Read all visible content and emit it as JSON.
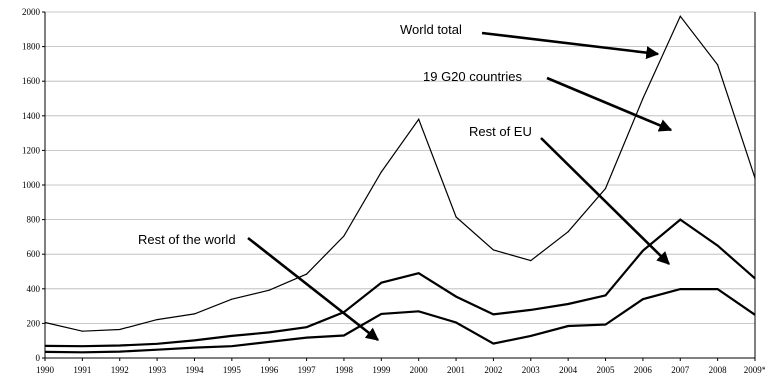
{
  "chart_data": {
    "type": "line",
    "x": [
      1990,
      1991,
      1992,
      1993,
      1994,
      1995,
      1996,
      1997,
      1998,
      1999,
      2000,
      2001,
      2002,
      2003,
      2004,
      2005,
      2006,
      2007,
      2008,
      2009
    ],
    "x_tick_labels": [
      "1990",
      "1991",
      "1992",
      "1993",
      "1994",
      "1995",
      "1996",
      "1997",
      "1998",
      "1999",
      "2000",
      "2001",
      "2002",
      "2003",
      "2004",
      "2005",
      "2006",
      "2007",
      "2008",
      "2009*"
    ],
    "y_ticks": [
      0,
      200,
      400,
      600,
      800,
      1000,
      1200,
      1400,
      1600,
      1800,
      2000
    ],
    "ylim": [
      0,
      2000
    ],
    "grid": "horizontal",
    "stacked": true,
    "series": [
      {
        "name": "Rest of the world",
        "values": [
          35,
          33,
          37,
          48,
          60,
          68,
          93,
          118,
          130,
          255,
          270,
          205,
          83,
          128,
          185,
          193,
          340,
          398,
          398,
          250
        ]
      },
      {
        "name": "Rest of EU",
        "values": [
          70,
          68,
          72,
          82,
          102,
          128,
          148,
          178,
          265,
          435,
          490,
          355,
          252,
          278,
          312,
          362,
          620,
          800,
          650,
          460
        ]
      },
      {
        "name": "19 G20 countries",
        "values": [
          205,
          155,
          165,
          222,
          255,
          340,
          392,
          485,
          705,
          1075,
          1380,
          815,
          625,
          563,
          730,
          980,
          1500,
          1975,
          1695,
          1040
        ]
      }
    ],
    "annotations": [
      {
        "text": "World total",
        "target": "19 G20 countries",
        "target_year": 2006.8
      },
      {
        "text": "19 G20 countries",
        "target": "Rest of EU",
        "target_year": 2006.9
      },
      {
        "text": "Rest of EU",
        "target": "Rest of EU",
        "target_year": 2006.6
      },
      {
        "text": "Rest of the world",
        "target": "Rest of the world",
        "target_year": 1998.9
      }
    ]
  }
}
